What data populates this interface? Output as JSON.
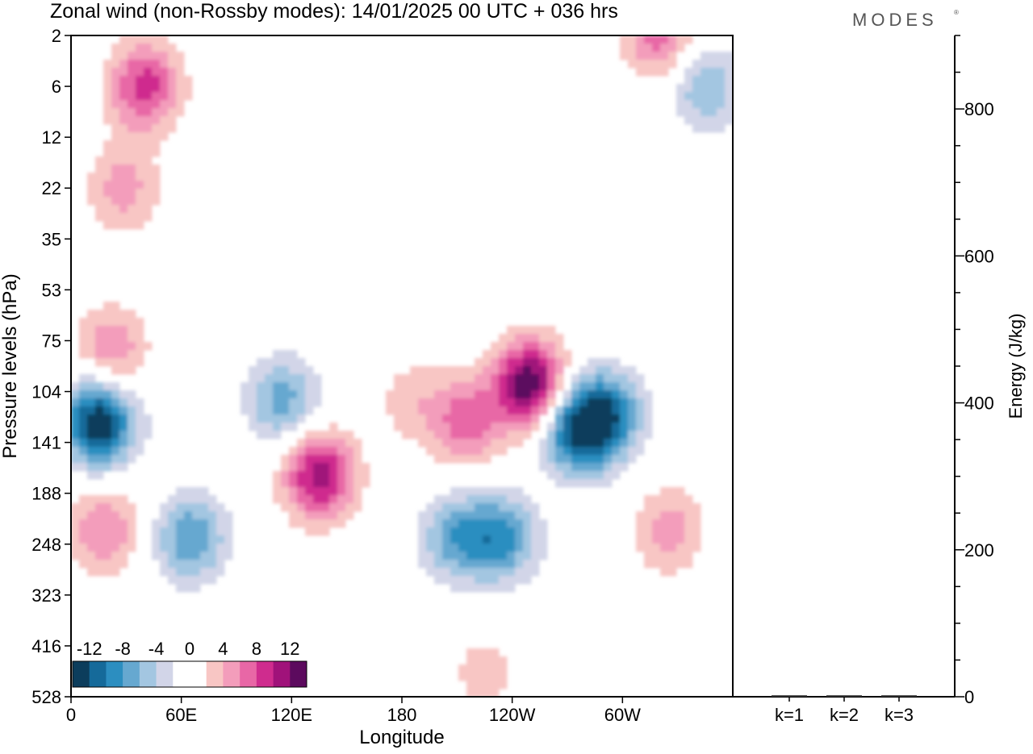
{
  "header": {
    "title": "Zonal wind (non-Rossby modes):  14/01/2025  00 UTC  + 036 hrs",
    "logo_text": "MODES",
    "logo_mark": "®"
  },
  "colors": {
    "axis": "#000000",
    "background": "#ffffff",
    "scale": [
      "#0c3d5c",
      "#156a9a",
      "#2c8ec0",
      "#66a8d0",
      "#a3c6e1",
      "#d2d5e8",
      "#ffffff",
      "#ffffff",
      "#f8c6c4",
      "#f39dbb",
      "#e867a6",
      "#cf2c8e",
      "#a0127a",
      "#5c0a5e"
    ]
  },
  "chart_data": [
    {
      "type": "heatmap",
      "title": "Zonal wind (non-Rossby modes):  14/01/2025  00 UTC  + 036 hrs",
      "xlabel": "Longitude",
      "ylabel": "Pressure levels (hPa)",
      "x_tick_labels": [
        "0",
        "60E",
        "120E",
        "180",
        "120W",
        "60W"
      ],
      "y_tick_labels": [
        "2",
        "6",
        "12",
        "22",
        "35",
        "53",
        "75",
        "104",
        "141",
        "188",
        "248",
        "323",
        "416",
        "528"
      ],
      "y_scale": "log",
      "colorbar": {
        "labels": [
          "-12",
          "-8",
          "-4",
          "0",
          "4",
          "8",
          "12"
        ],
        "placement": "bottom-left"
      },
      "features": [
        {
          "lon": 15,
          "level": 125,
          "value": -14
        },
        {
          "lon": 40,
          "level": 6,
          "value": 9
        },
        {
          "lon": 28,
          "level": 22,
          "value": 5
        },
        {
          "lon": 22,
          "level": 80,
          "value": 6
        },
        {
          "lon": 18,
          "level": 230,
          "value": 6
        },
        {
          "lon": 65,
          "level": 240,
          "value": -8
        },
        {
          "lon": 115,
          "level": 110,
          "value": -7
        },
        {
          "lon": 135,
          "level": 170,
          "value": 11
        },
        {
          "lon": 185,
          "level": 110,
          "value": 3
        },
        {
          "lon": 215,
          "level": 125,
          "value": 7
        },
        {
          "lon": 250,
          "level": 100,
          "value": 14
        },
        {
          "lon": 275,
          "level": 130,
          "value": -12
        },
        {
          "lon": 292,
          "level": 120,
          "value": -9
        },
        {
          "lon": 210,
          "level": 240,
          "value": -7
        },
        {
          "lon": 235,
          "level": 240,
          "value": -8
        },
        {
          "lon": 345,
          "level": 6,
          "value": -6
        },
        {
          "lon": 320,
          "level": 2,
          "value": 7
        },
        {
          "lon": 225,
          "level": 470,
          "value": 3
        },
        {
          "lon": 325,
          "level": 230,
          "value": 5
        }
      ]
    },
    {
      "type": "bar",
      "ylabel": "Energy (J/kg)",
      "ylim": [
        0,
        900
      ],
      "y_tick_labels": [
        "0",
        "200",
        "400",
        "600",
        "800"
      ],
      "categories": [
        "k=1",
        "k=2",
        "k=3"
      ],
      "values": [
        2,
        2,
        2
      ]
    }
  ]
}
